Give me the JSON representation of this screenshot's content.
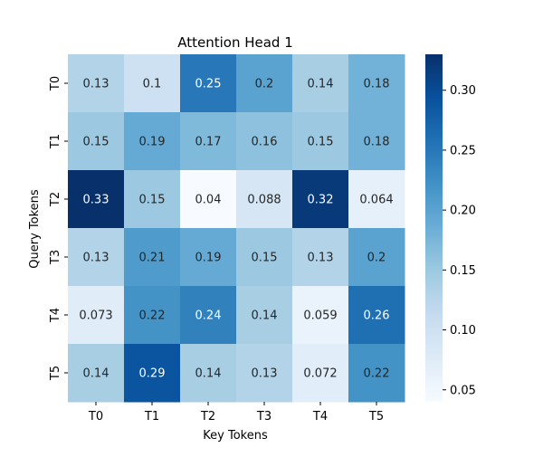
{
  "chart_data": {
    "type": "heatmap",
    "title": "Attention Head 1",
    "xlabel": "Key Tokens",
    "ylabel": "Query Tokens",
    "x_categories": [
      "T0",
      "T1",
      "T2",
      "T3",
      "T4",
      "T5"
    ],
    "y_categories": [
      "T0",
      "T1",
      "T2",
      "T3",
      "T4",
      "T5"
    ],
    "values": [
      [
        0.13,
        0.1,
        0.25,
        0.2,
        0.14,
        0.18
      ],
      [
        0.15,
        0.19,
        0.17,
        0.16,
        0.15,
        0.18
      ],
      [
        0.33,
        0.15,
        0.04,
        0.088,
        0.32,
        0.064
      ],
      [
        0.13,
        0.21,
        0.19,
        0.15,
        0.13,
        0.2
      ],
      [
        0.073,
        0.22,
        0.24,
        0.14,
        0.059,
        0.26
      ],
      [
        0.14,
        0.29,
        0.14,
        0.13,
        0.072,
        0.22
      ]
    ],
    "value_labels": [
      [
        "0.13",
        "0.1",
        "0.25",
        "0.2",
        "0.14",
        "0.18"
      ],
      [
        "0.15",
        "0.19",
        "0.17",
        "0.16",
        "0.15",
        "0.18"
      ],
      [
        "0.33",
        "0.15",
        "0.04",
        "0.088",
        "0.32",
        "0.064"
      ],
      [
        "0.13",
        "0.21",
        "0.19",
        "0.15",
        "0.13",
        "0.2"
      ],
      [
        "0.073",
        "0.22",
        "0.24",
        "0.14",
        "0.059",
        "0.26"
      ],
      [
        "0.14",
        "0.29",
        "0.14",
        "0.13",
        "0.072",
        "0.22"
      ]
    ],
    "colormap": "Blues",
    "colorbar": {
      "min": 0.04,
      "max": 0.33,
      "ticks": [
        0.05,
        0.1,
        0.15,
        0.2,
        0.25,
        0.3
      ],
      "tick_labels": [
        "0.05",
        "0.10",
        "0.15",
        "0.20",
        "0.25",
        "0.30"
      ]
    }
  }
}
